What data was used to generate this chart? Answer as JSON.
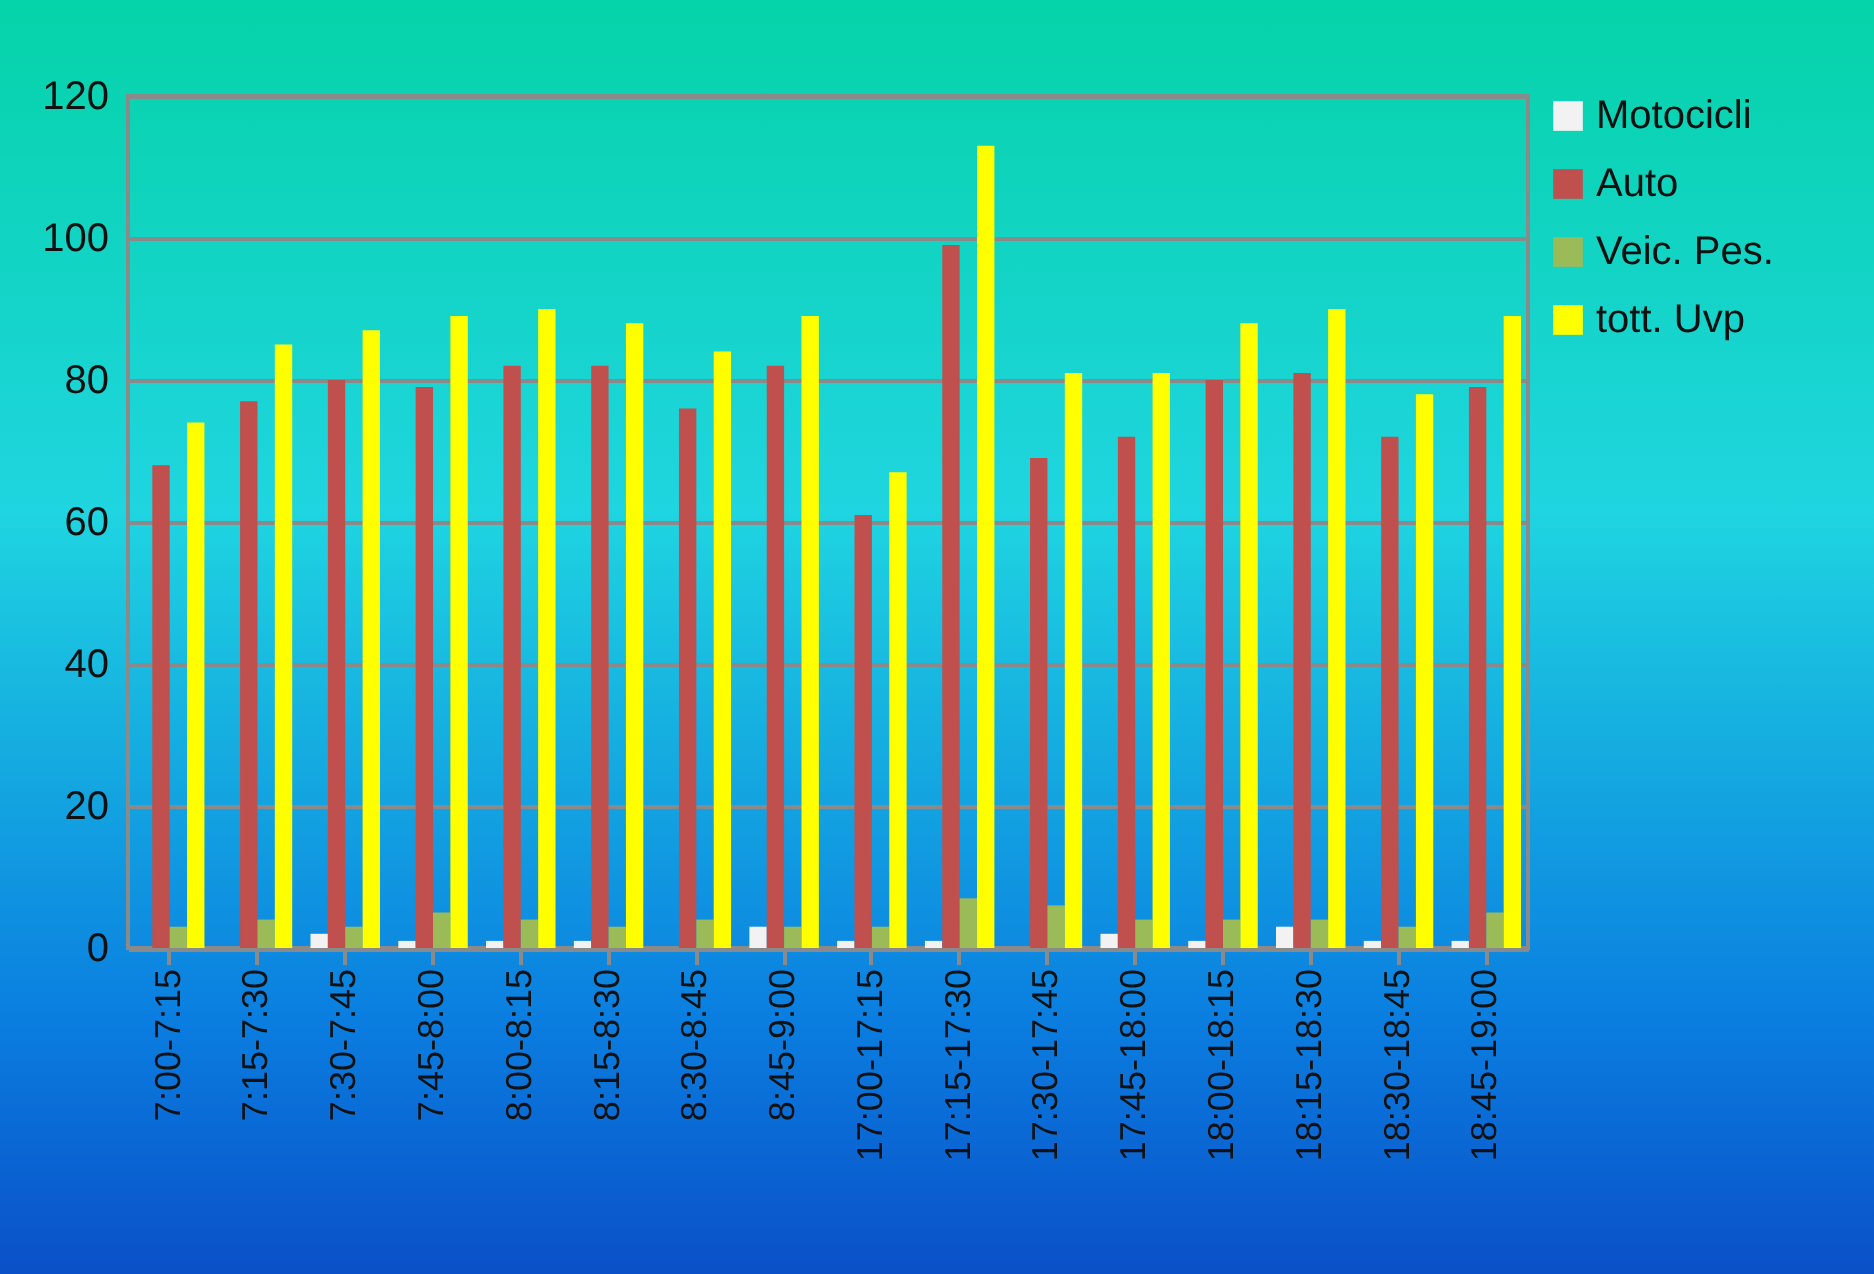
{
  "chart_data": {
    "type": "bar",
    "categories": [
      "7:00-7:15",
      "7:15-7:30",
      "7:30-7:45",
      "7:45-8:00",
      "8:00-8:15",
      "8:15-8:30",
      "8:30-8:45",
      "8:45-9:00",
      "17:00-17:15",
      "17:15-17:30",
      "17:30-17:45",
      "17:45-18:00",
      "18:00-18:15",
      "18:15-18:30",
      "18:30-18:45",
      "18:45-19:00"
    ],
    "series": [
      {
        "name": "Motocicli",
        "color": "#f2f2f2",
        "values": [
          0,
          0,
          2,
          1,
          1,
          1,
          0,
          3,
          1,
          1,
          0,
          2,
          1,
          3,
          1,
          1
        ]
      },
      {
        "name": "Auto",
        "color": "#c0504d",
        "values": [
          68,
          77,
          80,
          79,
          82,
          82,
          76,
          82,
          61,
          99,
          69,
          72,
          80,
          81,
          72,
          79
        ]
      },
      {
        "name": "Veic. Pes.",
        "color": "#9bbb59",
        "values": [
          3,
          4,
          3,
          5,
          4,
          3,
          4,
          3,
          3,
          7,
          6,
          4,
          4,
          4,
          3,
          5
        ]
      },
      {
        "name": "tott. Uvp",
        "color": "#ffff00",
        "values": [
          74,
          85,
          87,
          89,
          90,
          88,
          84,
          89,
          67,
          113,
          81,
          81,
          88,
          90,
          78,
          89
        ]
      }
    ],
    "ylim": [
      0,
      120
    ],
    "yticks": [
      0,
      20,
      40,
      60,
      80,
      100,
      120
    ],
    "grid": "y",
    "legend": "right"
  }
}
